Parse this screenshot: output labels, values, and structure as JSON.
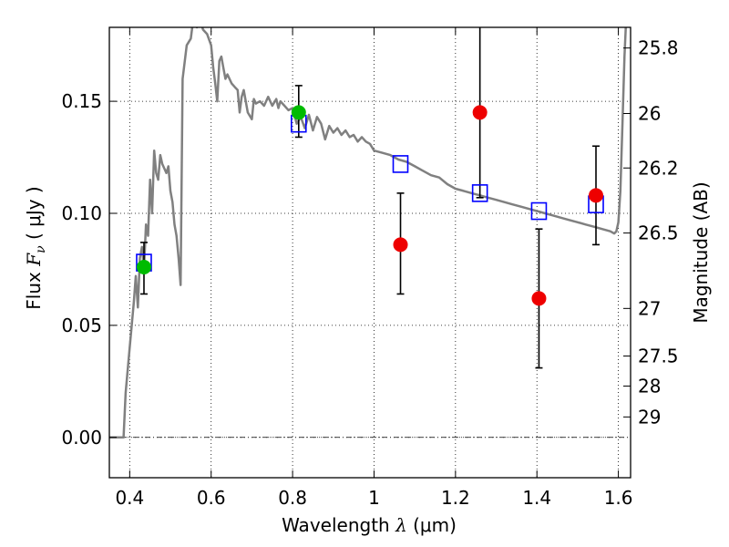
{
  "chart_data": {
    "type": "scatter",
    "xlabel": "Wavelength  λ (μm)",
    "xlabel_parts": {
      "prefix": "Wavelength  ",
      "symbol": "λ",
      "units": " (μm)"
    },
    "ylabel": "Flux  Fν  ( μJy )",
    "ylabel_parts": {
      "prefix": "Flux  ",
      "symbol": "F",
      "subscript": "ν",
      "units": "  ( μJy )"
    },
    "y2label": "Magnitude (AB)",
    "xlim": [
      0.35,
      1.63
    ],
    "ylim": [
      -0.018,
      0.183
    ],
    "grid": true,
    "x_ticks": [
      {
        "value": 0.4,
        "label": "0.4"
      },
      {
        "value": 0.6,
        "label": "0.6"
      },
      {
        "value": 0.8,
        "label": "0.8"
      },
      {
        "value": 1.0,
        "label": "1"
      },
      {
        "value": 1.2,
        "label": "1.2"
      },
      {
        "value": 1.4,
        "label": "1.4"
      },
      {
        "value": 1.6,
        "label": "1.6"
      }
    ],
    "y_ticks": [
      {
        "value": 0.0,
        "label": "0.00"
      },
      {
        "value": 0.05,
        "label": "0.05"
      },
      {
        "value": 0.1,
        "label": "0.10"
      },
      {
        "value": 0.15,
        "label": "0.15"
      }
    ],
    "mag_ticks": [
      {
        "value": 25.8,
        "label": "25.8"
      },
      {
        "value": 26.0,
        "label": "26"
      },
      {
        "value": 26.2,
        "label": "26.2"
      },
      {
        "value": 26.5,
        "label": "26.5"
      },
      {
        "value": 27.0,
        "label": "27"
      },
      {
        "value": 27.5,
        "label": "27.5"
      },
      {
        "value": 28.0,
        "label": "28"
      },
      {
        "value": 29.0,
        "label": "29"
      }
    ],
    "zero_line": 0.0,
    "series": [
      {
        "kind": "line",
        "color": "#808080",
        "points": [
          [
            0.35,
            0.0
          ],
          [
            0.385,
            0.0
          ],
          [
            0.39,
            0.02
          ],
          [
            0.4,
            0.04
          ],
          [
            0.41,
            0.06
          ],
          [
            0.415,
            0.072
          ],
          [
            0.42,
            0.058
          ],
          [
            0.425,
            0.08
          ],
          [
            0.43,
            0.085
          ],
          [
            0.435,
            0.075
          ],
          [
            0.44,
            0.095
          ],
          [
            0.445,
            0.09
          ],
          [
            0.45,
            0.115
          ],
          [
            0.455,
            0.1
          ],
          [
            0.46,
            0.128
          ],
          [
            0.465,
            0.118
          ],
          [
            0.47,
            0.115
          ],
          [
            0.475,
            0.126
          ],
          [
            0.48,
            0.122
          ],
          [
            0.485,
            0.12
          ],
          [
            0.49,
            0.118
          ],
          [
            0.495,
            0.121
          ],
          [
            0.5,
            0.11
          ],
          [
            0.505,
            0.105
          ],
          [
            0.51,
            0.095
          ],
          [
            0.515,
            0.09
          ],
          [
            0.52,
            0.08
          ],
          [
            0.525,
            0.068
          ],
          [
            0.53,
            0.16
          ],
          [
            0.54,
            0.175
          ],
          [
            0.55,
            0.178
          ],
          [
            0.555,
            0.185
          ],
          [
            0.56,
            0.19
          ],
          [
            0.565,
            0.183
          ],
          [
            0.57,
            0.188
          ],
          [
            0.58,
            0.182
          ],
          [
            0.59,
            0.18
          ],
          [
            0.6,
            0.175
          ],
          [
            0.605,
            0.165
          ],
          [
            0.61,
            0.158
          ],
          [
            0.615,
            0.15
          ],
          [
            0.62,
            0.168
          ],
          [
            0.625,
            0.17
          ],
          [
            0.63,
            0.165
          ],
          [
            0.635,
            0.16
          ],
          [
            0.64,
            0.162
          ],
          [
            0.65,
            0.158
          ],
          [
            0.66,
            0.156
          ],
          [
            0.665,
            0.155
          ],
          [
            0.67,
            0.145
          ],
          [
            0.675,
            0.152
          ],
          [
            0.68,
            0.155
          ],
          [
            0.685,
            0.15
          ],
          [
            0.69,
            0.145
          ],
          [
            0.7,
            0.142
          ],
          [
            0.705,
            0.151
          ],
          [
            0.71,
            0.149
          ],
          [
            0.72,
            0.15
          ],
          [
            0.73,
            0.148
          ],
          [
            0.74,
            0.152
          ],
          [
            0.75,
            0.148
          ],
          [
            0.76,
            0.151
          ],
          [
            0.765,
            0.147
          ],
          [
            0.77,
            0.15
          ],
          [
            0.78,
            0.148
          ],
          [
            0.79,
            0.146
          ],
          [
            0.8,
            0.147
          ],
          [
            0.81,
            0.14
          ],
          [
            0.82,
            0.143
          ],
          [
            0.83,
            0.138
          ],
          [
            0.84,
            0.144
          ],
          [
            0.85,
            0.137
          ],
          [
            0.86,
            0.143
          ],
          [
            0.87,
            0.14
          ],
          [
            0.88,
            0.133
          ],
          [
            0.89,
            0.139
          ],
          [
            0.9,
            0.136
          ],
          [
            0.91,
            0.138
          ],
          [
            0.92,
            0.135
          ],
          [
            0.93,
            0.137
          ],
          [
            0.94,
            0.134
          ],
          [
            0.95,
            0.135
          ],
          [
            0.96,
            0.132
          ],
          [
            0.97,
            0.134
          ],
          [
            0.98,
            0.132
          ],
          [
            0.99,
            0.131
          ],
          [
            1.0,
            0.128
          ],
          [
            1.02,
            0.127
          ],
          [
            1.04,
            0.126
          ],
          [
            1.06,
            0.124
          ],
          [
            1.08,
            0.123
          ],
          [
            1.1,
            0.121
          ],
          [
            1.12,
            0.119
          ],
          [
            1.14,
            0.117
          ],
          [
            1.16,
            0.116
          ],
          [
            1.18,
            0.113
          ],
          [
            1.2,
            0.111
          ],
          [
            1.22,
            0.11
          ],
          [
            1.24,
            0.109
          ],
          [
            1.26,
            0.108
          ],
          [
            1.28,
            0.107
          ],
          [
            1.3,
            0.106
          ],
          [
            1.32,
            0.105
          ],
          [
            1.34,
            0.104
          ],
          [
            1.36,
            0.103
          ],
          [
            1.38,
            0.102
          ],
          [
            1.4,
            0.101
          ],
          [
            1.42,
            0.1
          ],
          [
            1.44,
            0.099
          ],
          [
            1.46,
            0.098
          ],
          [
            1.48,
            0.097
          ],
          [
            1.5,
            0.096
          ],
          [
            1.52,
            0.095
          ],
          [
            1.54,
            0.094
          ],
          [
            1.56,
            0.093
          ],
          [
            1.58,
            0.092
          ],
          [
            1.59,
            0.091
          ],
          [
            1.595,
            0.092
          ],
          [
            1.6,
            0.096
          ],
          [
            1.605,
            0.11
          ],
          [
            1.61,
            0.14
          ],
          [
            1.615,
            0.17
          ],
          [
            1.62,
            0.19
          ]
        ]
      },
      {
        "kind": "model_points",
        "marker": "square",
        "color": "#0000ff",
        "x": [
          0.435,
          0.815,
          1.065,
          1.26,
          1.405,
          1.545
        ],
        "y": [
          0.078,
          0.14,
          0.122,
          0.109,
          0.101,
          0.104
        ]
      },
      {
        "kind": "detections",
        "marker": "circle",
        "color": "#00bb00",
        "x": [
          0.435,
          0.815
        ],
        "y": [
          0.076,
          0.145
        ],
        "err_low": [
          0.064,
          0.134
        ],
        "err_high": [
          0.087,
          0.157
        ]
      },
      {
        "kind": "non_detections",
        "marker": "circle",
        "color": "#ee0000",
        "x": [
          1.065,
          1.26,
          1.405,
          1.545
        ],
        "y": [
          0.086,
          0.145,
          0.062,
          0.108
        ],
        "err_low": [
          0.064,
          0.107,
          0.031,
          0.086
        ],
        "err_high": [
          0.109,
          0.19,
          0.093,
          0.13
        ]
      }
    ]
  }
}
